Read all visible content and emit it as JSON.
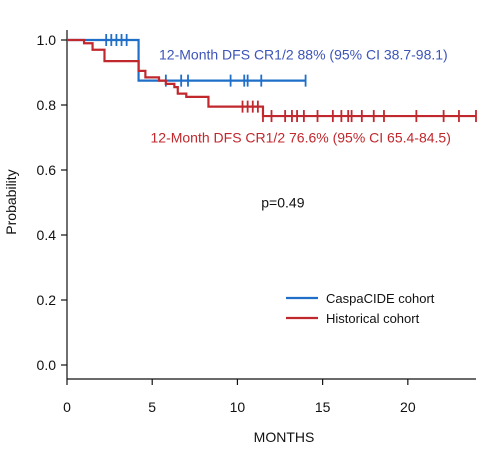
{
  "chart_data": {
    "type": "line",
    "title": "",
    "xlabel": "MONTHS",
    "ylabel": "Probability",
    "xlim": [
      0,
      24
    ],
    "ylim": [
      0,
      1.0
    ],
    "x_ticks": [
      "0",
      "5",
      "10",
      "15",
      "20"
    ],
    "x_tick_values": [
      0,
      5,
      10,
      15,
      20
    ],
    "y_ticks": [
      "0.0",
      "0.2",
      "0.4",
      "0.6",
      "0.8",
      "1.0"
    ],
    "y_tick_values": [
      0,
      0.2,
      0.4,
      0.6,
      0.8,
      1.0
    ],
    "grid": false,
    "legend_position": "bottom-right",
    "series": [
      {
        "name": "CaspaCIDE cohort",
        "color": "#1f6fc9",
        "step_x": [
          0,
          4.2,
          14.0
        ],
        "step_y": [
          1.0,
          0.875,
          0.875
        ],
        "censor_x": [
          2.3,
          2.6,
          2.9,
          3.2,
          3.5,
          5.8,
          6.7,
          7.1,
          9.6,
          10.4,
          10.6,
          11.4,
          14.0
        ]
      },
      {
        "name": "Historical cohort",
        "color": "#c0282d",
        "step_x": [
          0,
          1.0,
          1.5,
          2.2,
          4.2,
          4.6,
          5.4,
          5.8,
          6.3,
          6.5,
          7.0,
          8.3,
          11.5,
          24.0
        ],
        "step_y": [
          1.0,
          0.99,
          0.97,
          0.935,
          0.905,
          0.885,
          0.875,
          0.865,
          0.855,
          0.835,
          0.825,
          0.795,
          0.766,
          0.766
        ],
        "censor_x": [
          10.3,
          10.6,
          10.9,
          11.2,
          11.5,
          12.0,
          12.8,
          13.2,
          13.5,
          13.9,
          14.7,
          15.6,
          16.1,
          16.5,
          16.7,
          17.3,
          18.0,
          18.6,
          20.5,
          22.1,
          23.0,
          24.0
        ]
      }
    ],
    "annotations": [
      {
        "text": "12-Month DFS CR1/2 88% (95% CI 38.7-98.1)",
        "color": "#3c54b8",
        "anchor_x": 5.4,
        "anchor_y": 0.94
      },
      {
        "text": "12-Month DFS CR1/2 76.6% (95% CI 65.4-84.5)",
        "color": "#c0282d",
        "anchor_x": 4.9,
        "anchor_y": 0.685
      },
      {
        "text": "p=0.49",
        "color": "#111111",
        "anchor_x": 11.4,
        "anchor_y": 0.485
      }
    ]
  }
}
